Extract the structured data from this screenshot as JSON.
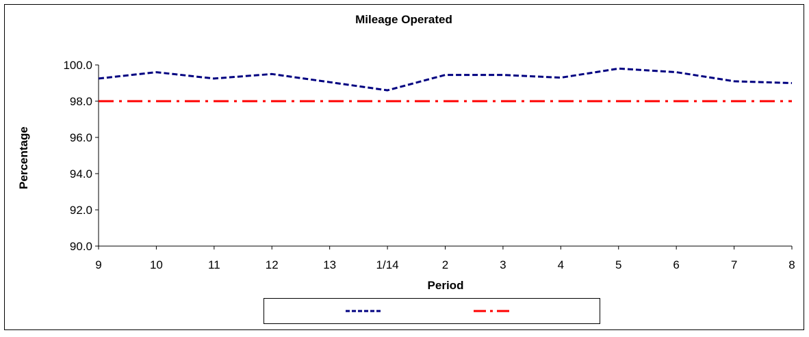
{
  "chart_data": {
    "type": "line",
    "title": "Mileage Operated",
    "xlabel": "Period",
    "ylabel": "Percentage",
    "categories": [
      "9",
      "10",
      "11",
      "12",
      "13",
      "1/14",
      "2",
      "3",
      "4",
      "5",
      "6",
      "7",
      "8"
    ],
    "ylim": [
      90,
      100
    ],
    "yticks": [
      90,
      92,
      94,
      96,
      98,
      100
    ],
    "ytick_labels": [
      "90.0",
      "92.0",
      "94.0",
      "96.0",
      "98.0",
      "100.0"
    ],
    "grid": false,
    "legend_position": "bottom",
    "series": [
      {
        "values": [
          99.25,
          99.6,
          99.25,
          99.5,
          99.05,
          98.6,
          99.45,
          99.45,
          99.3,
          99.8,
          99.6,
          99.1,
          99.0
        ],
        "color": "#000080",
        "style": "dashed"
      },
      {
        "values": [
          98.0,
          98.0,
          98.0,
          98.0,
          98.0,
          98.0,
          98.0,
          98.0,
          98.0,
          98.0,
          98.0,
          98.0,
          98.0
        ],
        "color": "#ff0000",
        "style": "dash-dot"
      }
    ]
  }
}
